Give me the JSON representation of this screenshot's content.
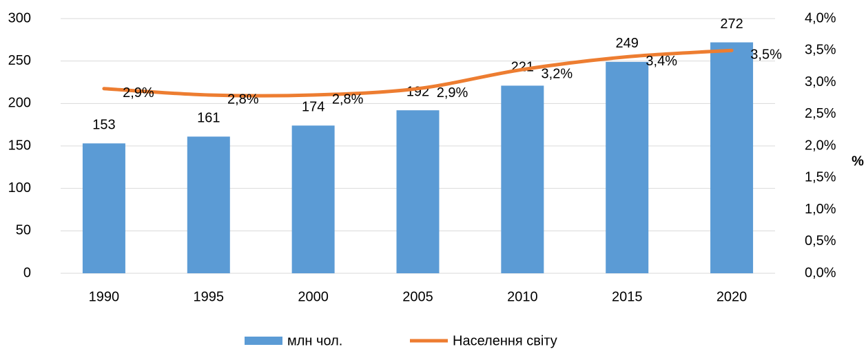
{
  "chart_data": {
    "type": "combo",
    "categories": [
      "1990",
      "1995",
      "2000",
      "2005",
      "2010",
      "2015",
      "2020"
    ],
    "series": [
      {
        "name": "млн чол.",
        "type": "bar",
        "color": "#5b9bd5",
        "values": [
          153,
          161,
          174,
          192,
          221,
          249,
          272
        ]
      },
      {
        "name": "Населення світу",
        "type": "line",
        "axis": "y2",
        "color": "#ed7d31",
        "values": [
          2.9,
          2.8,
          2.8,
          2.9,
          3.2,
          3.4,
          3.5
        ],
        "value_labels": [
          "2,9%",
          "2,8%",
          "2,8%",
          "2,9%",
          "3,2%",
          "3,4%",
          "3,5%"
        ]
      }
    ],
    "ylim": [
      0,
      300
    ],
    "yticks": [
      0,
      50,
      100,
      150,
      200,
      250,
      300
    ],
    "y2lim": [
      0,
      4
    ],
    "y2ticks": [
      {
        "value": 0,
        "label": "0,0%"
      },
      {
        "value": 0.5,
        "label": "0,5%"
      },
      {
        "value": 1,
        "label": "1,0%"
      },
      {
        "value": 1.5,
        "label": "1,5%"
      },
      {
        "value": 2,
        "label": "2,0%"
      },
      {
        "value": 2.5,
        "label": "2,5%"
      },
      {
        "value": 3,
        "label": "3,0%"
      },
      {
        "value": 3.5,
        "label": "3,5%"
      },
      {
        "value": 4,
        "label": "4,0%"
      }
    ],
    "y2label": "%",
    "grid": true
  }
}
